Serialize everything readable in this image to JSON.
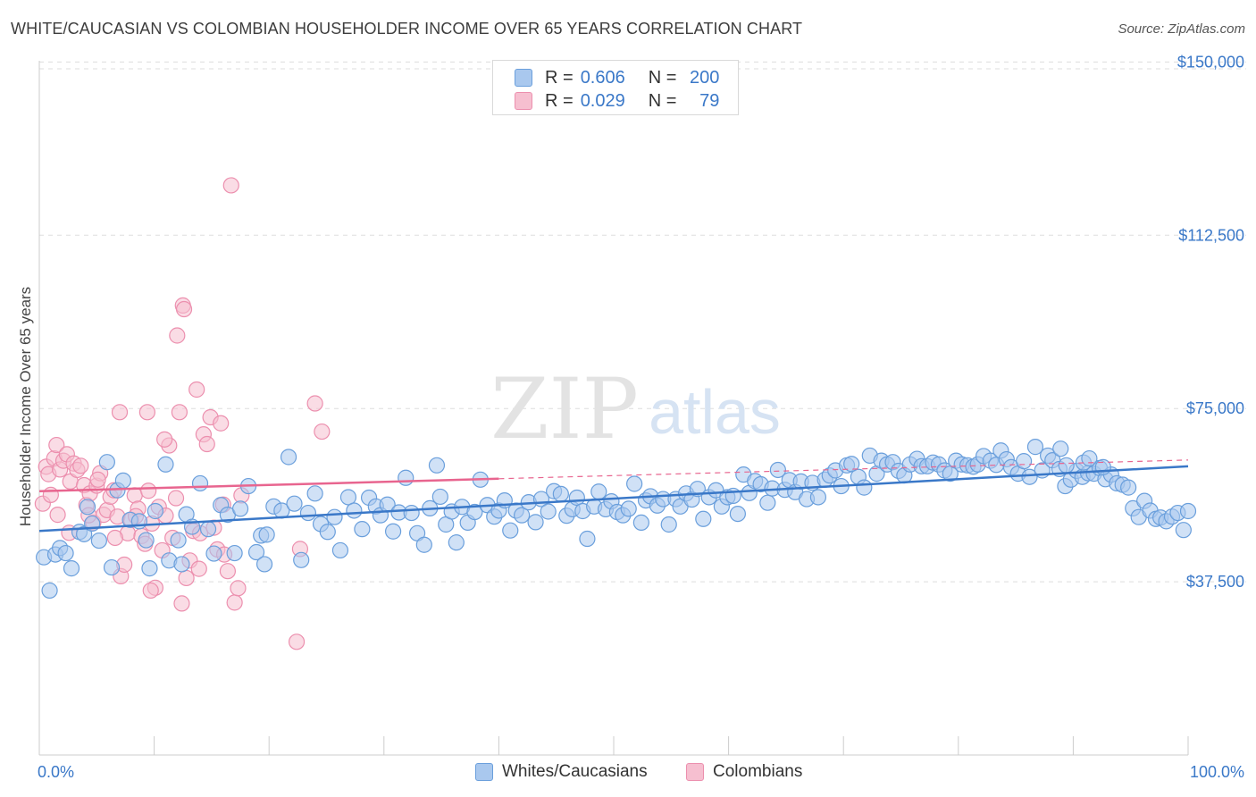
{
  "title": "WHITE/CAUCASIAN VS COLOMBIAN HOUSEHOLDER INCOME OVER 65 YEARS CORRELATION CHART",
  "source": "Source: ZipAtlas.com",
  "watermark": {
    "zip": "ZIP",
    "atlas": "atlas"
  },
  "legend": {
    "rows": [
      {
        "r_label": "R =",
        "r_value": "0.606",
        "n_label": "N =",
        "n_value": "200"
      },
      {
        "r_label": "R =",
        "r_value": "0.029",
        "n_label": "N =",
        "n_value": "79"
      }
    ]
  },
  "bottom_legend": [
    "Whites/Caucasians",
    "Colombians"
  ],
  "colors": {
    "white_fill": "#a9c8ee",
    "white_stroke": "#6a9fdc",
    "white_line": "#3a78c8",
    "colombian_fill": "#f6bfd0",
    "colombian_stroke": "#ec8fae",
    "colombian_line": "#e8658f",
    "axis_text": "#3a78c8",
    "grid": "#dddddd"
  },
  "chart_data": {
    "type": "scatter",
    "title": "WHITE/CAUCASIAN VS COLOMBIAN HOUSEHOLDER INCOME OVER 65 YEARS CORRELATION CHART",
    "xlabel": "",
    "ylabel": "Householder Income Over 65 years",
    "xlim": [
      0,
      100
    ],
    "ylim": [
      0,
      153750
    ],
    "x_tick_labels": [
      "0.0%",
      "100.0%"
    ],
    "y_ticks": [
      37500,
      75000,
      112500,
      150000
    ],
    "y_tick_labels": [
      "$37,500",
      "$75,000",
      "$112,500",
      "$150,000"
    ],
    "grid": true,
    "legend_position": "top-center",
    "series": [
      {
        "name": "Whites/Caucasians",
        "R": 0.606,
        "N": 200,
        "trend": {
          "x": [
            0,
            100
          ],
          "y": [
            48500,
            62500
          ]
        },
        "points": [
          [
            0.4,
            42800
          ],
          [
            0.9,
            35600
          ],
          [
            1.4,
            43400
          ],
          [
            1.8,
            44800
          ],
          [
            2.3,
            43700
          ],
          [
            2.8,
            40400
          ],
          [
            3.5,
            48300
          ],
          [
            3.9,
            47800
          ],
          [
            4.2,
            53700
          ],
          [
            4.6,
            50100
          ],
          [
            5.2,
            46400
          ],
          [
            5.9,
            63400
          ],
          [
            6.3,
            40600
          ],
          [
            6.8,
            57300
          ],
          [
            7.3,
            59400
          ],
          [
            7.9,
            50900
          ],
          [
            8.7,
            50600
          ],
          [
            9.3,
            46500
          ],
          [
            9.6,
            40400
          ],
          [
            10.1,
            52800
          ],
          [
            11.0,
            62900
          ],
          [
            11.3,
            42100
          ],
          [
            12.1,
            46500
          ],
          [
            12.4,
            41300
          ],
          [
            12.8,
            52100
          ],
          [
            13.3,
            49400
          ],
          [
            14.0,
            58800
          ],
          [
            14.7,
            48900
          ],
          [
            15.2,
            43600
          ],
          [
            15.8,
            54100
          ],
          [
            16.4,
            52000
          ],
          [
            17.0,
            43700
          ],
          [
            17.5,
            53300
          ],
          [
            18.2,
            58200
          ],
          [
            18.9,
            43900
          ],
          [
            19.3,
            47500
          ],
          [
            19.8,
            47700
          ],
          [
            19.6,
            41300
          ],
          [
            20.4,
            53800
          ],
          [
            21.1,
            52900
          ],
          [
            21.7,
            64500
          ],
          [
            22.2,
            54400
          ],
          [
            22.8,
            42200
          ],
          [
            23.4,
            52400
          ],
          [
            24.0,
            56600
          ],
          [
            24.5,
            50000
          ],
          [
            25.1,
            48300
          ],
          [
            25.7,
            51500
          ],
          [
            26.2,
            44300
          ],
          [
            26.9,
            55800
          ],
          [
            27.4,
            52900
          ],
          [
            28.1,
            48900
          ],
          [
            28.7,
            55700
          ],
          [
            29.3,
            53800
          ],
          [
            29.7,
            51900
          ],
          [
            30.3,
            54200
          ],
          [
            30.8,
            48400
          ],
          [
            31.3,
            52500
          ],
          [
            31.9,
            60000
          ],
          [
            32.4,
            52400
          ],
          [
            32.9,
            48000
          ],
          [
            33.5,
            45500
          ],
          [
            34.0,
            53400
          ],
          [
            34.6,
            62700
          ],
          [
            34.9,
            55900
          ],
          [
            35.4,
            49900
          ],
          [
            35.9,
            52700
          ],
          [
            36.3,
            46000
          ],
          [
            36.8,
            53700
          ],
          [
            37.3,
            50300
          ],
          [
            37.9,
            52600
          ],
          [
            38.4,
            59600
          ],
          [
            39.0,
            54100
          ],
          [
            39.6,
            51600
          ],
          [
            40.0,
            52900
          ],
          [
            40.5,
            55100
          ],
          [
            41.0,
            48600
          ],
          [
            41.5,
            52900
          ],
          [
            42.0,
            51900
          ],
          [
            42.6,
            54700
          ],
          [
            43.2,
            50400
          ],
          [
            43.7,
            55400
          ],
          [
            44.3,
            52700
          ],
          [
            44.8,
            57100
          ],
          [
            45.4,
            56500
          ],
          [
            45.9,
            51800
          ],
          [
            46.4,
            53200
          ],
          [
            46.8,
            55700
          ],
          [
            47.3,
            52800
          ],
          [
            47.7,
            46800
          ],
          [
            48.3,
            53800
          ],
          [
            48.7,
            57000
          ],
          [
            49.3,
            53200
          ],
          [
            49.8,
            54900
          ],
          [
            50.3,
            52600
          ],
          [
            50.8,
            51900
          ],
          [
            51.3,
            53300
          ],
          [
            51.8,
            58700
          ],
          [
            52.4,
            50300
          ],
          [
            52.8,
            55100
          ],
          [
            53.2,
            56000
          ],
          [
            53.8,
            54000
          ],
          [
            54.3,
            55400
          ],
          [
            54.8,
            49900
          ],
          [
            55.4,
            55400
          ],
          [
            55.8,
            53800
          ],
          [
            56.3,
            56600
          ],
          [
            56.8,
            55300
          ],
          [
            57.3,
            57600
          ],
          [
            57.8,
            51100
          ],
          [
            58.3,
            55800
          ],
          [
            58.9,
            57300
          ],
          [
            59.4,
            53800
          ],
          [
            59.9,
            55800
          ],
          [
            60.4,
            56100
          ],
          [
            60.8,
            52200
          ],
          [
            61.3,
            60700
          ],
          [
            61.8,
            56700
          ],
          [
            62.3,
            59300
          ],
          [
            62.8,
            58600
          ],
          [
            63.4,
            54600
          ],
          [
            63.8,
            57700
          ],
          [
            64.3,
            61700
          ],
          [
            64.9,
            57400
          ],
          [
            65.3,
            59500
          ],
          [
            65.8,
            56900
          ],
          [
            66.3,
            59200
          ],
          [
            66.8,
            55400
          ],
          [
            67.3,
            58900
          ],
          [
            67.8,
            55800
          ],
          [
            68.4,
            59600
          ],
          [
            68.8,
            60500
          ],
          [
            69.3,
            61600
          ],
          [
            69.8,
            58200
          ],
          [
            70.3,
            62700
          ],
          [
            70.7,
            63000
          ],
          [
            71.3,
            60200
          ],
          [
            71.8,
            57900
          ],
          [
            72.3,
            64800
          ],
          [
            72.9,
            60900
          ],
          [
            73.3,
            63700
          ],
          [
            73.8,
            62900
          ],
          [
            74.3,
            63400
          ],
          [
            74.8,
            61500
          ],
          [
            75.3,
            60500
          ],
          [
            75.8,
            62900
          ],
          [
            76.4,
            64100
          ],
          [
            76.8,
            62500
          ],
          [
            77.3,
            62500
          ],
          [
            77.8,
            63300
          ],
          [
            78.3,
            62900
          ],
          [
            78.8,
            61600
          ],
          [
            79.3,
            60900
          ],
          [
            79.8,
            63700
          ],
          [
            80.3,
            62900
          ],
          [
            80.8,
            62700
          ],
          [
            81.3,
            62400
          ],
          [
            81.7,
            62900
          ],
          [
            82.2,
            64700
          ],
          [
            82.8,
            63700
          ],
          [
            83.3,
            62800
          ],
          [
            83.7,
            65900
          ],
          [
            84.2,
            64000
          ],
          [
            84.6,
            62300
          ],
          [
            85.2,
            60900
          ],
          [
            85.7,
            63600
          ],
          [
            86.2,
            60200
          ],
          [
            86.7,
            66700
          ],
          [
            87.3,
            61600
          ],
          [
            87.8,
            64800
          ],
          [
            88.2,
            63800
          ],
          [
            88.8,
            61900
          ],
          [
            89.3,
            58200
          ],
          [
            89.8,
            59600
          ],
          [
            90.3,
            61500
          ],
          [
            90.8,
            60200
          ],
          [
            91.3,
            61000
          ],
          [
            91.8,
            60900
          ],
          [
            92.3,
            62100
          ],
          [
            92.8,
            59700
          ],
          [
            93.3,
            60700
          ],
          [
            93.8,
            58800
          ],
          [
            94.3,
            58500
          ],
          [
            94.8,
            57900
          ],
          [
            95.2,
            53400
          ],
          [
            95.7,
            51500
          ],
          [
            96.2,
            55000
          ],
          [
            96.7,
            52900
          ],
          [
            97.2,
            51100
          ],
          [
            97.6,
            51400
          ],
          [
            98.1,
            50600
          ],
          [
            98.6,
            51600
          ],
          [
            99.1,
            52400
          ],
          [
            99.6,
            48700
          ],
          [
            100.0,
            52800
          ],
          [
            88.9,
            66300
          ],
          [
            89.4,
            62700
          ],
          [
            90.9,
            63300
          ],
          [
            91.4,
            64200
          ],
          [
            92.6,
            62300
          ]
        ]
      },
      {
        "name": "Colombians",
        "R": 0.029,
        "N": 79,
        "trend": {
          "x": [
            0,
            40
          ],
          "y": [
            57100,
            59800
          ]
        },
        "points": [
          [
            0.3,
            54400
          ],
          [
            0.6,
            62400
          ],
          [
            0.8,
            60800
          ],
          [
            1.0,
            56300
          ],
          [
            1.3,
            64200
          ],
          [
            1.5,
            67100
          ],
          [
            1.8,
            61800
          ],
          [
            2.1,
            63700
          ],
          [
            2.4,
            65100
          ],
          [
            2.7,
            59200
          ],
          [
            3.0,
            63100
          ],
          [
            3.3,
            61700
          ],
          [
            3.6,
            62600
          ],
          [
            3.9,
            58400
          ],
          [
            4.1,
            54100
          ],
          [
            4.4,
            56600
          ],
          [
            4.7,
            50300
          ],
          [
            5.0,
            58300
          ],
          [
            5.3,
            61000
          ],
          [
            5.6,
            52000
          ],
          [
            5.9,
            53000
          ],
          [
            6.2,
            55900
          ],
          [
            6.5,
            57300
          ],
          [
            6.8,
            51600
          ],
          [
            7.1,
            38700
          ],
          [
            7.4,
            41200
          ],
          [
            7.7,
            48000
          ],
          [
            8.0,
            50900
          ],
          [
            8.3,
            56200
          ],
          [
            8.6,
            53300
          ],
          [
            8.9,
            47400
          ],
          [
            9.2,
            45700
          ],
          [
            9.5,
            57200
          ],
          [
            9.8,
            50100
          ],
          [
            10.1,
            36200
          ],
          [
            10.4,
            53700
          ],
          [
            10.7,
            44300
          ],
          [
            11.0,
            51800
          ],
          [
            11.3,
            67000
          ],
          [
            11.6,
            47000
          ],
          [
            11.9,
            55600
          ],
          [
            12.2,
            74200
          ],
          [
            12.5,
            97300
          ],
          [
            12.8,
            38300
          ],
          [
            13.1,
            42100
          ],
          [
            13.4,
            48500
          ],
          [
            13.7,
            79100
          ],
          [
            14.0,
            48000
          ],
          [
            14.3,
            69400
          ],
          [
            14.6,
            67300
          ],
          [
            14.9,
            73100
          ],
          [
            15.2,
            49200
          ],
          [
            15.5,
            44500
          ],
          [
            15.8,
            71800
          ],
          [
            16.1,
            43400
          ],
          [
            16.4,
            39800
          ],
          [
            16.7,
            123300
          ],
          [
            17.0,
            33000
          ],
          [
            17.3,
            36100
          ],
          [
            17.6,
            56200
          ],
          [
            12.0,
            90800
          ],
          [
            12.6,
            96500
          ],
          [
            9.4,
            74200
          ],
          [
            7.0,
            74200
          ],
          [
            8.4,
            51700
          ],
          [
            6.6,
            47000
          ],
          [
            5.1,
            59600
          ],
          [
            4.3,
            51900
          ],
          [
            2.6,
            48100
          ],
          [
            1.6,
            52000
          ],
          [
            24.0,
            76100
          ],
          [
            24.6,
            70000
          ],
          [
            22.4,
            24500
          ],
          [
            22.7,
            44600
          ],
          [
            12.4,
            32800
          ],
          [
            13.9,
            40300
          ],
          [
            10.9,
            68300
          ],
          [
            9.7,
            35600
          ],
          [
            16.0,
            54200
          ]
        ]
      }
    ]
  }
}
